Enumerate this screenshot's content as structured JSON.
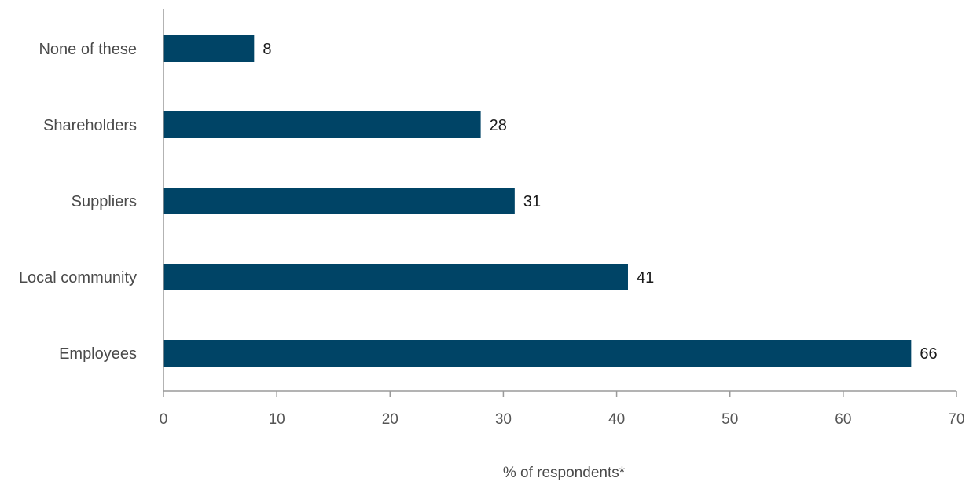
{
  "chart_data": {
    "type": "bar",
    "orientation": "horizontal",
    "categories": [
      "None of these",
      "Shareholders",
      "Suppliers",
      "Local community",
      "Employees"
    ],
    "values": [
      8,
      28,
      31,
      41,
      66
    ],
    "data_labels": [
      "8",
      "28",
      "31",
      "41",
      "66"
    ],
    "title": "",
    "xlabel": "% of respondents*",
    "ylabel": "",
    "xlim": [
      0,
      70
    ],
    "xticks": [
      0,
      10,
      20,
      30,
      40,
      50,
      60,
      70
    ],
    "xtick_labels": [
      "0",
      "10",
      "20",
      "30",
      "40",
      "50",
      "60",
      "70"
    ],
    "grid": false,
    "bar_color": "#004466"
  }
}
